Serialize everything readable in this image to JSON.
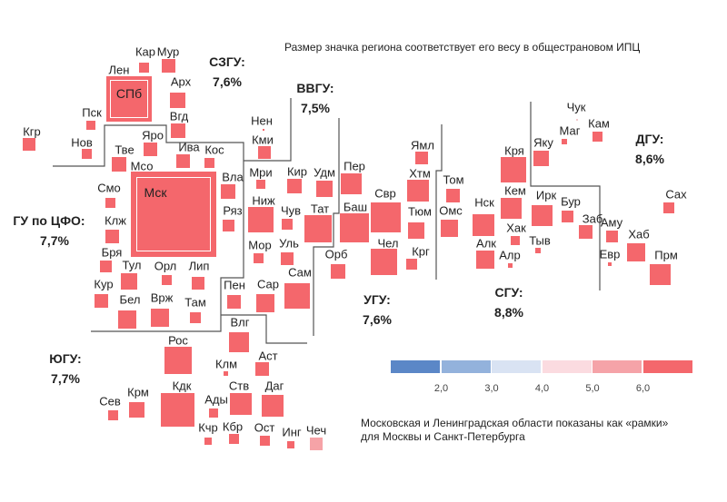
{
  "title_note": "Размер значка региона соответствует его весу в общестрановом ИПЦ",
  "footnote_line1": "Московская и Ленинградская области показаны как «рамки»",
  "footnote_line2": "для Москвы и Санкт-Петербурга",
  "colors": {
    "main": "#f4676c",
    "light": "#f6a3a7",
    "tiny": "#f2c9cc"
  },
  "districts": [
    {
      "id": "szgu",
      "name": "СЗГУ:",
      "value": "7,6%"
    },
    {
      "id": "vvgu",
      "name": "ВВГУ:",
      "value": "7,5%"
    },
    {
      "id": "cfo",
      "name": "ГУ по ЦФО:",
      "value": "7,7%"
    },
    {
      "id": "yugu",
      "name": "ЮГУ:",
      "value": "7,7%"
    },
    {
      "id": "ugu",
      "name": "УГУ:",
      "value": "7,6%"
    },
    {
      "id": "sgu",
      "name": "СГУ:",
      "value": "8,8%"
    },
    {
      "id": "dgu",
      "name": "ДГУ:",
      "value": "8,6%"
    }
  ],
  "legend": {
    "colors": [
      "#5b87c7",
      "#93b2dc",
      "#d9e3f3",
      "#fbdbe0",
      "#f5a3a8",
      "#f4676c"
    ],
    "ticks": [
      "2,0",
      "3,0",
      "4,0",
      "5,0",
      "6,0"
    ]
  },
  "frames": [
    {
      "name": "Лен",
      "inner": "СПб"
    },
    {
      "name": "Мсо",
      "inner": "Мск"
    }
  ],
  "regions": [
    {
      "name": "Кар",
      "color": "main"
    },
    {
      "name": "Мур",
      "color": "main"
    },
    {
      "name": "Арх",
      "color": "main"
    },
    {
      "name": "Вгд",
      "color": "main"
    },
    {
      "name": "Пск",
      "color": "main"
    },
    {
      "name": "Нов",
      "color": "main"
    },
    {
      "name": "Кгр",
      "color": "main"
    },
    {
      "name": "Яро",
      "color": "main"
    },
    {
      "name": "Тве",
      "color": "main"
    },
    {
      "name": "Ива",
      "color": "main"
    },
    {
      "name": "Кос",
      "color": "main"
    },
    {
      "name": "Вла",
      "color": "main"
    },
    {
      "name": "Смо",
      "color": "main"
    },
    {
      "name": "Ряз",
      "color": "main"
    },
    {
      "name": "Клж",
      "color": "main"
    },
    {
      "name": "Бря",
      "color": "main"
    },
    {
      "name": "Тул",
      "color": "main"
    },
    {
      "name": "Орл",
      "color": "main"
    },
    {
      "name": "Лип",
      "color": "main"
    },
    {
      "name": "Кур",
      "color": "main"
    },
    {
      "name": "Бел",
      "color": "main"
    },
    {
      "name": "Врж",
      "color": "main"
    },
    {
      "name": "Там",
      "color": "main"
    },
    {
      "name": "Пен",
      "color": "main"
    },
    {
      "name": "Сар",
      "color": "main"
    },
    {
      "name": "Сам",
      "color": "main"
    },
    {
      "name": "Мор",
      "color": "main"
    },
    {
      "name": "Уль",
      "color": "main"
    },
    {
      "name": "Орб",
      "color": "main"
    },
    {
      "name": "Влг",
      "color": "main"
    },
    {
      "name": "Рос",
      "color": "main"
    },
    {
      "name": "Клм",
      "color": "main"
    },
    {
      "name": "Аст",
      "color": "main"
    },
    {
      "name": "Кдк",
      "color": "main"
    },
    {
      "name": "Ств",
      "color": "main"
    },
    {
      "name": "Даг",
      "color": "main"
    },
    {
      "name": "Ады",
      "color": "main"
    },
    {
      "name": "Сев",
      "color": "main"
    },
    {
      "name": "Крм",
      "color": "main"
    },
    {
      "name": "Кчр",
      "color": "main"
    },
    {
      "name": "Кбр",
      "color": "main"
    },
    {
      "name": "Ост",
      "color": "main"
    },
    {
      "name": "Инг",
      "color": "main"
    },
    {
      "name": "Чеч",
      "color": "light"
    },
    {
      "name": "Нен",
      "color": "main"
    },
    {
      "name": "Кми",
      "color": "main"
    },
    {
      "name": "Мри",
      "color": "main"
    },
    {
      "name": "Кир",
      "color": "main"
    },
    {
      "name": "Удм",
      "color": "main"
    },
    {
      "name": "Пер",
      "color": "main"
    },
    {
      "name": "Ниж",
      "color": "main"
    },
    {
      "name": "Чув",
      "color": "main"
    },
    {
      "name": "Тат",
      "color": "main"
    },
    {
      "name": "Баш",
      "color": "main"
    },
    {
      "name": "Свр",
      "color": "main"
    },
    {
      "name": "Ямл",
      "color": "main"
    },
    {
      "name": "Хтм",
      "color": "main"
    },
    {
      "name": "Тюм",
      "color": "main"
    },
    {
      "name": "Чел",
      "color": "main"
    },
    {
      "name": "Крг",
      "color": "main"
    },
    {
      "name": "Том",
      "color": "main"
    },
    {
      "name": "Омс",
      "color": "main"
    },
    {
      "name": "Чук",
      "color": "tiny"
    },
    {
      "name": "Маг",
      "color": "main"
    },
    {
      "name": "Кам",
      "color": "main"
    },
    {
      "name": "Яку",
      "color": "main"
    },
    {
      "name": "Кря",
      "color": "main"
    },
    {
      "name": "Кем",
      "color": "main"
    },
    {
      "name": "Нск",
      "color": "main"
    },
    {
      "name": "Ирк",
      "color": "main"
    },
    {
      "name": "Бур",
      "color": "main"
    },
    {
      "name": "Заб",
      "color": "main"
    },
    {
      "name": "Хак",
      "color": "main"
    },
    {
      "name": "Тыв",
      "color": "main"
    },
    {
      "name": "Алк",
      "color": "main"
    },
    {
      "name": "Алр",
      "color": "main"
    },
    {
      "name": "Аму",
      "color": "main"
    },
    {
      "name": "Евр",
      "color": "main"
    },
    {
      "name": "Хаб",
      "color": "main"
    },
    {
      "name": "Прм",
      "color": "main"
    },
    {
      "name": "Сах",
      "color": "main"
    }
  ]
}
